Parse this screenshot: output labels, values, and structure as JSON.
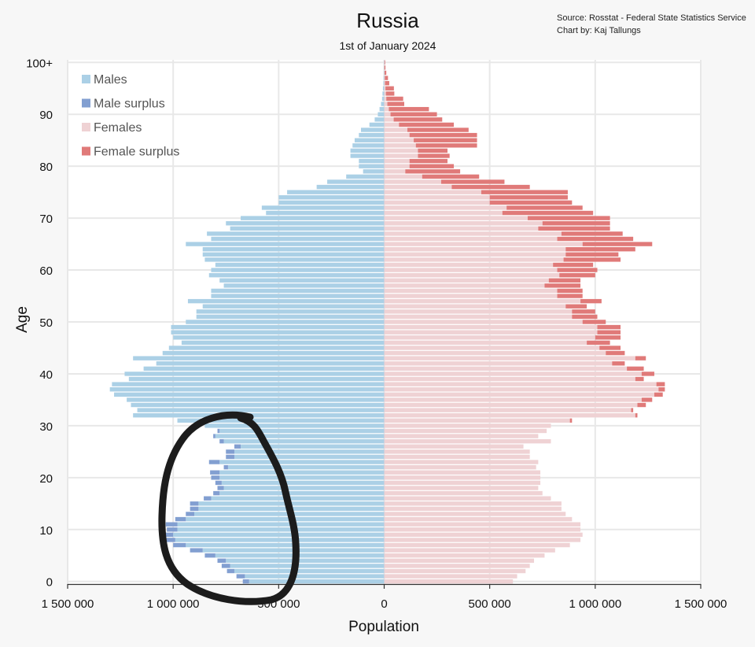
{
  "chart_data": {
    "type": "bar",
    "orientation": "horizontal",
    "title": "Russia",
    "subtitle": "1st of January 2024",
    "source": "Source: Rosstat - Federal State Statistics Service",
    "credit": "Chart by: Kaj Tallungs",
    "xlabel": "Population",
    "ylabel": "Age",
    "xlim": [
      -1500000,
      1500000
    ],
    "ylim": [
      0,
      100
    ],
    "x_ticks": [
      -1500000,
      -1000000,
      -500000,
      0,
      500000,
      1000000,
      1500000
    ],
    "x_tick_labels": [
      "1 500 000",
      "1 000 000",
      "500 000",
      "0",
      "500 000",
      "1 000 000",
      "1 500 000"
    ],
    "y_ticks": [
      0,
      10,
      20,
      30,
      40,
      50,
      60,
      70,
      80,
      90,
      100
    ],
    "y_tick_labels": [
      "0",
      "10",
      "20",
      "30",
      "40",
      "50",
      "60",
      "70",
      "80",
      "90",
      "100+"
    ],
    "grid": true,
    "legend_position": "top-left",
    "categories": [
      "0",
      "1",
      "2",
      "3",
      "4",
      "5",
      "6",
      "7",
      "8",
      "9",
      "10",
      "11",
      "12",
      "13",
      "14",
      "15",
      "16",
      "17",
      "18",
      "19",
      "20",
      "21",
      "22",
      "23",
      "24",
      "25",
      "26",
      "27",
      "28",
      "29",
      "30",
      "31",
      "32",
      "33",
      "34",
      "35",
      "36",
      "37",
      "38",
      "39",
      "40",
      "41",
      "42",
      "43",
      "44",
      "45",
      "46",
      "47",
      "48",
      "49",
      "50",
      "51",
      "52",
      "53",
      "54",
      "55",
      "56",
      "57",
      "58",
      "59",
      "60",
      "61",
      "62",
      "63",
      "64",
      "65",
      "66",
      "67",
      "68",
      "69",
      "70",
      "71",
      "72",
      "73",
      "74",
      "75",
      "76",
      "77",
      "78",
      "79",
      "80",
      "81",
      "82",
      "83",
      "84",
      "85",
      "86",
      "87",
      "88",
      "89",
      "90",
      "91",
      "92",
      "93",
      "94",
      "95",
      "96",
      "97",
      "98",
      "99",
      "100+"
    ],
    "series": [
      {
        "name": "Males",
        "color": "#abd0e6",
        "values": [
          640000,
          660000,
          710000,
          730000,
          750000,
          800000,
          860000,
          940000,
          990000,
          1000000,
          980000,
          980000,
          940000,
          900000,
          880000,
          880000,
          820000,
          780000,
          760000,
          770000,
          780000,
          780000,
          740000,
          780000,
          710000,
          710000,
          680000,
          760000,
          800000,
          780000,
          850000,
          980000,
          1190000,
          1170000,
          1200000,
          1220000,
          1280000,
          1300000,
          1290000,
          1210000,
          1230000,
          1140000,
          1080000,
          1190000,
          1050000,
          1020000,
          960000,
          1000000,
          1010000,
          1010000,
          940000,
          890000,
          890000,
          860000,
          930000,
          820000,
          820000,
          760000,
          780000,
          830000,
          820000,
          800000,
          850000,
          860000,
          860000,
          940000,
          820000,
          840000,
          730000,
          750000,
          680000,
          560000,
          580000,
          500000,
          500000,
          460000,
          320000,
          270000,
          180000,
          100000,
          120000,
          120000,
          160000,
          160000,
          150000,
          140000,
          120000,
          110000,
          70000,
          45000,
          30000,
          22000,
          15000,
          10000,
          8000,
          6000,
          4000,
          3000,
          2000,
          1000,
          1500
        ]
      },
      {
        "name": "Male surplus",
        "color": "#829fd1",
        "values": [
          30000,
          40000,
          35000,
          40000,
          40000,
          50000,
          60000,
          60000,
          60000,
          60000,
          50000,
          55000,
          50000,
          40000,
          40000,
          40000,
          35000,
          30000,
          30000,
          30000,
          40000,
          45000,
          20000,
          50000,
          40000,
          40000,
          30000,
          20000,
          10000,
          10000,
          0,
          0,
          0,
          0,
          0,
          0,
          0,
          0,
          0,
          0,
          0,
          0,
          0,
          0,
          0,
          0,
          0,
          0,
          0,
          0,
          0,
          0,
          0,
          0,
          0,
          0,
          0,
          0,
          0,
          0,
          0,
          0,
          0,
          0,
          0,
          0,
          0,
          0,
          0,
          0,
          0,
          0,
          0,
          0,
          0,
          0,
          0,
          0,
          0,
          0,
          0,
          0,
          0,
          0,
          0,
          0,
          0,
          0,
          0,
          0,
          0,
          0,
          0,
          0,
          0,
          0,
          0,
          0,
          0,
          0,
          0
        ]
      },
      {
        "name": "Females",
        "color": "#efd2d4",
        "values": [
          610000,
          630000,
          670000,
          690000,
          710000,
          760000,
          810000,
          880000,
          930000,
          940000,
          930000,
          930000,
          890000,
          860000,
          840000,
          840000,
          790000,
          750000,
          730000,
          740000,
          740000,
          740000,
          720000,
          730000,
          690000,
          690000,
          660000,
          790000,
          730000,
          770000,
          790000,
          880000,
          1190000,
          1170000,
          1200000,
          1220000,
          1280000,
          1300000,
          1290000,
          1190000,
          1220000,
          1150000,
          1080000,
          1190000,
          1050000,
          1020000,
          960000,
          1000000,
          1010000,
          1010000,
          940000,
          890000,
          890000,
          860000,
          930000,
          820000,
          820000,
          760000,
          780000,
          830000,
          820000,
          800000,
          850000,
          860000,
          860000,
          940000,
          820000,
          840000,
          730000,
          750000,
          680000,
          560000,
          580000,
          500000,
          500000,
          460000,
          320000,
          270000,
          180000,
          100000,
          120000,
          120000,
          160000,
          160000,
          150000,
          140000,
          120000,
          110000,
          70000,
          45000,
          30000,
          22000,
          15000,
          10000,
          8000,
          6000,
          4000,
          3000,
          2000,
          1000,
          1500
        ]
      },
      {
        "name": "Female surplus",
        "color": "#e07a79",
        "values": [
          0,
          0,
          0,
          0,
          0,
          0,
          0,
          0,
          0,
          0,
          0,
          0,
          0,
          0,
          0,
          0,
          0,
          0,
          0,
          0,
          0,
          0,
          0,
          0,
          0,
          0,
          0,
          0,
          0,
          0,
          0,
          10000,
          10000,
          10000,
          40000,
          50000,
          40000,
          30000,
          40000,
          40000,
          60000,
          80000,
          60000,
          50000,
          90000,
          100000,
          110000,
          120000,
          110000,
          110000,
          110000,
          120000,
          110000,
          100000,
          100000,
          120000,
          120000,
          170000,
          150000,
          170000,
          190000,
          190000,
          270000,
          250000,
          330000,
          330000,
          360000,
          290000,
          340000,
          320000,
          390000,
          430000,
          360000,
          390000,
          370000,
          410000,
          370000,
          300000,
          270000,
          260000,
          210000,
          180000,
          150000,
          140000,
          290000,
          300000,
          320000,
          290000,
          260000,
          230000,
          220000,
          190000,
          80000,
          80000,
          40000,
          40000,
          20000,
          15000,
          8000,
          5000,
          3000
        ]
      }
    ]
  }
}
